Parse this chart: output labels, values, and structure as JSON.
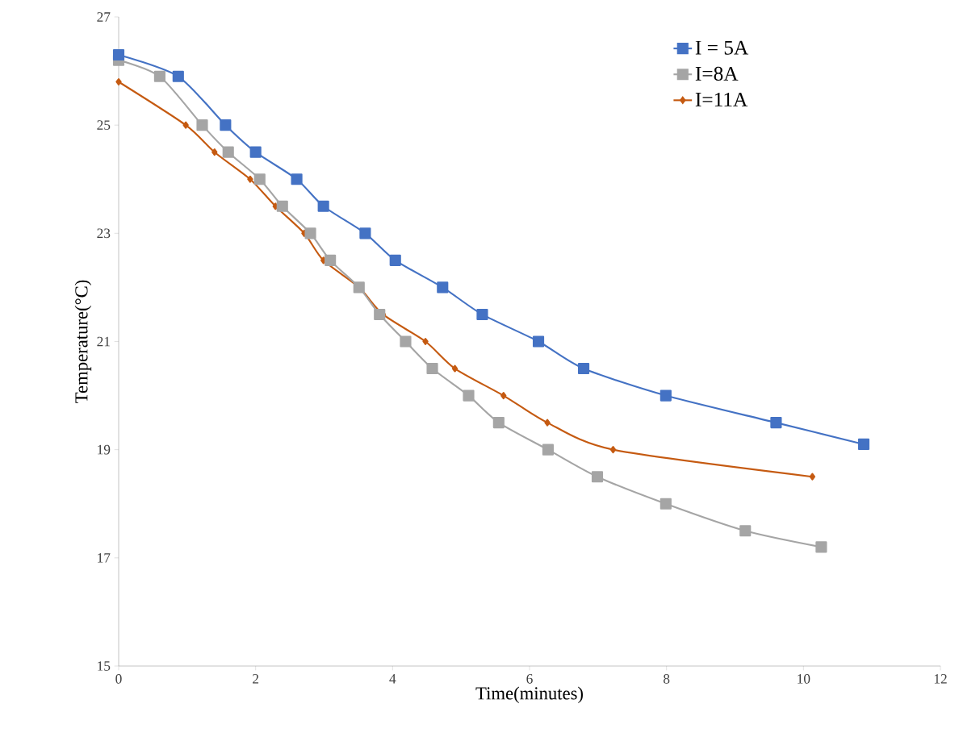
{
  "chart_data": {
    "type": "line",
    "xlabel": "Time(minutes)",
    "ylabel": "Temperature(°C)",
    "xlim": [
      0,
      12
    ],
    "xticks": [
      0,
      2,
      4,
      6,
      8,
      10,
      12
    ],
    "ylim": [
      15,
      27
    ],
    "yticks": [
      15,
      17,
      19,
      21,
      23,
      25,
      27
    ],
    "grid": false,
    "legend": "top right",
    "line_style": "solid",
    "series": [
      {
        "name": "I = 5A",
        "color": "#4472c4",
        "marker": "square",
        "x": [
          0,
          0.87,
          1.56,
          2.0,
          2.6,
          2.99,
          3.6,
          4.04,
          4.73,
          5.31,
          6.13,
          6.79,
          7.99,
          9.6,
          10.88
        ],
        "values": [
          26.3,
          25.9,
          25.0,
          24.5,
          24.0,
          23.5,
          23.0,
          22.5,
          22.0,
          21.5,
          21.0,
          20.5,
          20.0,
          19.5,
          19.1
        ]
      },
      {
        "name": "I=8A",
        "color": "#a5a5a5",
        "marker": "square",
        "x": [
          0,
          0.6,
          1.22,
          1.6,
          2.06,
          2.39,
          2.8,
          3.09,
          3.51,
          3.81,
          4.19,
          4.58,
          5.11,
          5.55,
          6.27,
          6.99,
          7.99,
          9.15,
          10.26
        ],
        "values": [
          26.2,
          25.9,
          25.0,
          24.5,
          24.0,
          23.5,
          23.0,
          22.5,
          22.0,
          21.5,
          21.0,
          20.5,
          20.0,
          19.5,
          19.0,
          18.5,
          18.0,
          17.5,
          17.2
        ]
      },
      {
        "name": "I=11A",
        "color": "#c55a11",
        "marker": "diamond",
        "x": [
          0,
          0.98,
          1.4,
          1.92,
          2.29,
          2.71,
          2.99,
          3.51,
          3.86,
          4.48,
          4.91,
          5.62,
          6.26,
          7.22,
          10.13
        ],
        "values": [
          25.8,
          25.0,
          24.5,
          24.0,
          23.5,
          23.0,
          22.5,
          22.0,
          21.5,
          21.0,
          20.5,
          20.0,
          19.5,
          19.0,
          18.5
        ]
      }
    ]
  }
}
